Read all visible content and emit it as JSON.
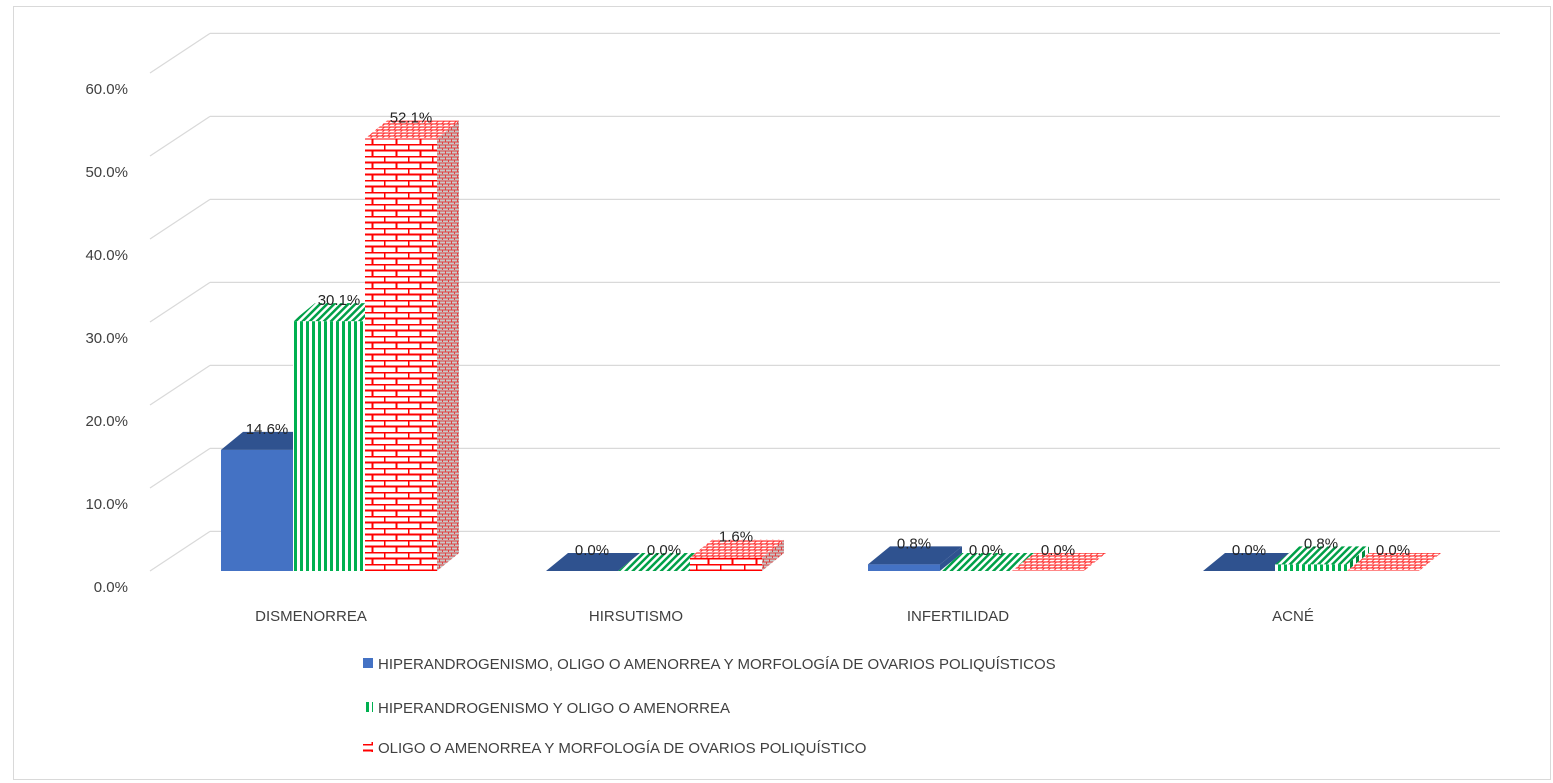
{
  "chart_data": {
    "type": "bar",
    "variant": "3d-clustered-column",
    "categories": [
      "DISMENORREA",
      "HIRSUTISMO",
      "INFERTILIDAD",
      "ACNÉ"
    ],
    "ylim": [
      0,
      60
    ],
    "yticks": [
      0,
      10,
      20,
      30,
      40,
      50,
      60
    ],
    "ytick_labels": [
      "0.0%",
      "10.0%",
      "20.0%",
      "30.0%",
      "40.0%",
      "50.0%",
      "60.0%"
    ],
    "grid": true,
    "legend_position": "bottom",
    "series": [
      {
        "name": "HIPERANDROGENISMO, OLIGO O AMENORREA Y MORFOLOGÍA DE OVARIOS POLIQUÍSTICOS",
        "values": [
          14.6,
          0.0,
          0.8,
          0.0
        ],
        "labels": [
          "14.6%",
          "0.0%",
          "0.8%",
          "0.0%"
        ],
        "color": "#4472c4",
        "pattern": "solid"
      },
      {
        "name": "HIPERANDROGENISMO Y OLIGO O AMENORREA",
        "values": [
          30.1,
          0.0,
          0.0,
          0.8
        ],
        "labels": [
          "30.1%",
          "0.0%",
          "0.0%",
          "0.8%"
        ],
        "color": "#00b050",
        "pattern": "vertical-stripes"
      },
      {
        "name": "OLIGO O AMENORREA Y MORFOLOGÍA DE OVARIOS POLIQUÍSTICO",
        "values": [
          52.1,
          1.6,
          0.0,
          0.0
        ],
        "labels": [
          "52.1%",
          "1.6%",
          "0.0%",
          "0.0%"
        ],
        "color": "#ff0000",
        "pattern": "brick"
      }
    ]
  }
}
